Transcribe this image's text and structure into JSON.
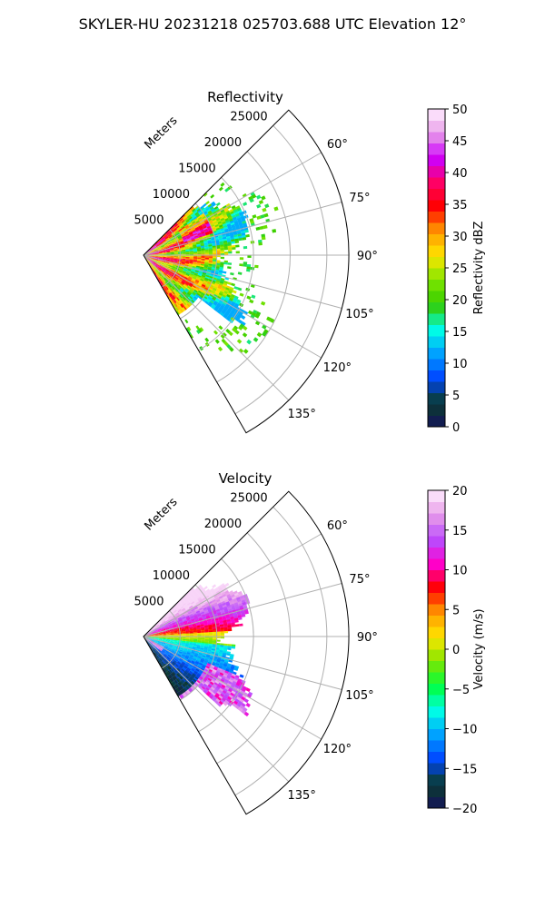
{
  "figure": {
    "title": "SKYLER-HU  20231218  025703.688 UTC Elevation 12°"
  },
  "chart_data": [
    {
      "type": "heatmap",
      "projection": "polar-sector",
      "title": "Reflectivity",
      "azimuth_range_deg": [
        45,
        150
      ],
      "azimuth_ticks_deg": [
        "60°",
        "75°",
        "90°",
        "105°",
        "120°",
        "135°"
      ],
      "range_axis_label": "Meters",
      "range_ticks_m": [
        "5000",
        "10000",
        "15000",
        "20000",
        "25000"
      ],
      "range_max_m": 28000,
      "colorbar": {
        "label": "Reflectivity dBZ",
        "min": 0,
        "max": 50,
        "ticks": [
          "0",
          "5",
          "10",
          "15",
          "20",
          "25",
          "30",
          "35",
          "40",
          "45",
          "50"
        ],
        "colors": [
          "#14145a",
          "#0a3c2d",
          "#0046ff",
          "#00a0ff",
          "#00ffe6",
          "#33cc00",
          "#7ee600",
          "#ffe600",
          "#ff9900",
          "#ff0000",
          "#ff0066",
          "#cc00ff",
          "#e89be8",
          "#fff0ff"
        ]
      },
      "echo_extent": {
        "core_max_range_m": 14000,
        "high_values_dbz": [
          30,
          42
        ],
        "outer_edge_dbz": [
          15,
          22
        ]
      }
    },
    {
      "type": "heatmap",
      "projection": "polar-sector",
      "title": "Velocity",
      "azimuth_range_deg": [
        45,
        150
      ],
      "azimuth_ticks_deg": [
        "60°",
        "75°",
        "90°",
        "105°",
        "120°",
        "135°"
      ],
      "range_axis_label": "Meters",
      "range_ticks_m": [
        "5000",
        "10000",
        "15000",
        "20000",
        "25000"
      ],
      "range_max_m": 28000,
      "colorbar": {
        "label": "Velocity (m/s)",
        "min": -20,
        "max": 20,
        "ticks": [
          "−20",
          "−15",
          "−10",
          "−5",
          "0",
          "5",
          "10",
          "15",
          "20"
        ],
        "colors": [
          "#14145a",
          "#0a3c2d",
          "#0046ff",
          "#00a0ff",
          "#00ffe6",
          "#00ff40",
          "#7ee600",
          "#ffe600",
          "#ff9900",
          "#ff0000",
          "#ff00cc",
          "#b84dff",
          "#e89be8",
          "#fff0ff"
        ]
      },
      "echo_extent": {
        "north_velocity_ms": [
          8,
          16
        ],
        "south_velocity_ms": [
          -12,
          -6
        ],
        "far_south_velocity_ms": [
          10,
          18
        ]
      }
    }
  ]
}
